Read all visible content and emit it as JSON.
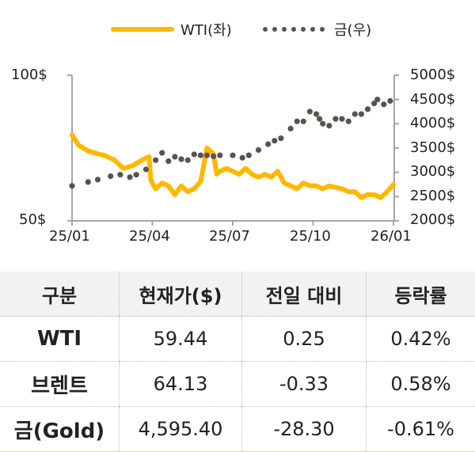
{
  "legend": {
    "wti_label": "WTI(좌)",
    "gold_label": "금(우)"
  },
  "axes": {
    "left_ticks": [
      "100$",
      "50$"
    ],
    "right_ticks": [
      "5000$",
      "4500$",
      "4000$",
      "3500$",
      "3000$",
      "2500$",
      "2000$"
    ],
    "x_ticks": [
      "25/01",
      "25/04",
      "25/07",
      "25/10",
      "26/01"
    ]
  },
  "colors": {
    "wti": "#FFB800",
    "gold": "#5A524C",
    "axis": "#A6A6A6",
    "header_bg": "#F2F2F2"
  },
  "table": {
    "headers": [
      "구분",
      "현재가($)",
      "전일 대비",
      "등락률"
    ],
    "rows": [
      {
        "name": "WTI",
        "price": "59.44",
        "change": "0.25",
        "rate": "0.42%"
      },
      {
        "name": "브렌트",
        "price": "64.13",
        "change": "-0.33",
        "rate": "0.58%"
      },
      {
        "name": "금(Gold)",
        "price": "4,595.40",
        "change": "-28.30",
        "rate": "-0.61%"
      }
    ]
  },
  "chart_data": {
    "type": "line",
    "title": "",
    "xlabel": "",
    "ylabel": "",
    "x_range": [
      "25/01",
      "26/01"
    ],
    "legend_position": "top",
    "grid": false,
    "series": [
      {
        "name": "WTI(좌)",
        "axis": "left",
        "style": "solid-thick",
        "ylim": [
          50,
          100
        ],
        "x": [
          0.0,
          0.02,
          0.05,
          0.08,
          0.1,
          0.13,
          0.16,
          0.19,
          0.22,
          0.24,
          0.245,
          0.26,
          0.28,
          0.3,
          0.32,
          0.34,
          0.36,
          0.38,
          0.4,
          0.42,
          0.44,
          0.45,
          0.46,
          0.48,
          0.5,
          0.52,
          0.54,
          0.56,
          0.58,
          0.6,
          0.62,
          0.64,
          0.66,
          0.68,
          0.7,
          0.72,
          0.74,
          0.76,
          0.78,
          0.8,
          0.82,
          0.84,
          0.86,
          0.88,
          0.9,
          0.92,
          0.94,
          0.96,
          0.98,
          1.0
        ],
        "values": [
          79.5,
          76,
          74,
          73,
          72.5,
          71,
          68,
          69,
          71,
          72,
          64,
          61,
          63,
          62,
          59,
          62,
          60,
          61,
          63.5,
          75,
          73,
          66,
          67,
          68,
          67,
          66,
          68,
          66,
          65,
          66,
          65,
          67,
          63,
          62,
          61,
          63,
          62,
          62,
          61,
          62,
          61.5,
          61,
          60,
          60,
          58,
          59,
          59,
          58,
          60,
          62.5
        ]
      },
      {
        "name": "금(우)",
        "axis": "right",
        "style": "dotted",
        "ylim": [
          2000,
          5000
        ],
        "x": [
          0.0,
          0.05,
          0.08,
          0.12,
          0.15,
          0.18,
          0.2,
          0.23,
          0.26,
          0.28,
          0.3,
          0.32,
          0.34,
          0.36,
          0.38,
          0.4,
          0.42,
          0.44,
          0.46,
          0.5,
          0.53,
          0.55,
          0.58,
          0.61,
          0.63,
          0.65,
          0.68,
          0.7,
          0.72,
          0.74,
          0.76,
          0.77,
          0.78,
          0.8,
          0.82,
          0.84,
          0.86,
          0.88,
          0.9,
          0.92,
          0.94,
          0.95,
          0.97,
          0.99
        ],
        "values": [
          2720,
          2800,
          2850,
          2920,
          2950,
          2900,
          2950,
          3060,
          3250,
          3400,
          3230,
          3320,
          3270,
          3250,
          3370,
          3350,
          3350,
          3330,
          3350,
          3350,
          3300,
          3350,
          3460,
          3580,
          3650,
          3700,
          3900,
          4050,
          4050,
          4250,
          4200,
          4100,
          4000,
          3960,
          4100,
          4100,
          4050,
          4200,
          4200,
          4300,
          4420,
          4500,
          4400,
          4470
        ]
      }
    ]
  }
}
